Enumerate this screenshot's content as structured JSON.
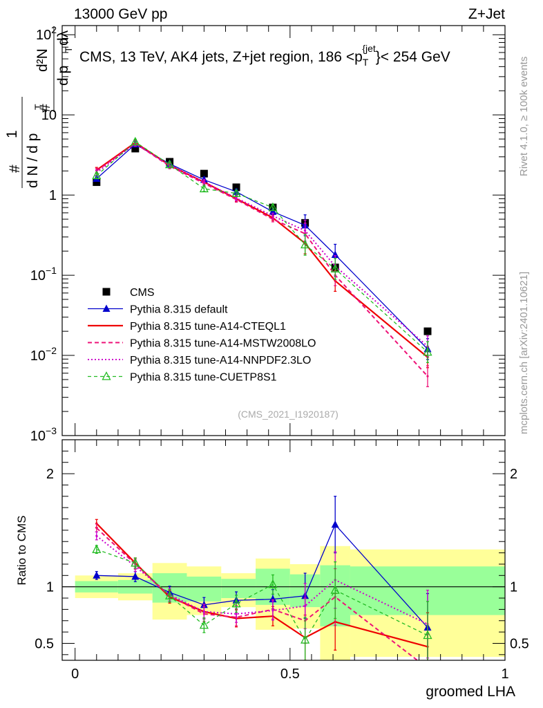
{
  "header": {
    "left": "13000 GeV pp",
    "right": "Z+Jet"
  },
  "side": {
    "rivet": "Rivet 4.1.0, ≥ 100k events",
    "mcplots": "mcplots.cern.ch [arXiv:2401.10621]"
  },
  "colors": {
    "cms": "#000000",
    "default": "#0000cc",
    "cteql1": "#ee0000",
    "mstw": "#ee1177",
    "nnpdf": "#cc00cc",
    "cuetp8s1": "#22bb22",
    "band_yellow": "#ffff99",
    "band_green": "#99ff99"
  },
  "chart_data": [
    {
      "type": "line",
      "panel": "main",
      "title": "CMS, 13 TeV, AK4 jets, Z+jet region, 186 <p_T^{jet}< 254 GeV",
      "title_parts": {
        "pre": "CMS, 13 TeV, AK4 jets, Z+jet region, 186 <p",
        "sub": "T",
        "sup": "{jet",
        "post": "}< 254 GeV"
      },
      "ylabel": "1/(dN/dpT) d²N/(dpT dλ)",
      "ylabel_parts": {
        "one": "1",
        "dn": "d N / d p",
        "T": "T",
        "num": "d²N",
        "den": "d p",
        "lam": "dλ",
        "hash": "#"
      },
      "yscale": "log",
      "ylim": [
        0.001,
        130
      ],
      "xlim": [
        -0.03,
        1.0
      ],
      "yticks": [
        {
          "v": 100,
          "base": "10",
          "exp": "2"
        },
        {
          "v": 10,
          "base": "10",
          "exp": ""
        },
        {
          "v": 1,
          "base": "1",
          "exp": ""
        },
        {
          "v": 0.1,
          "base": "10",
          "exp": "−1"
        },
        {
          "v": 0.01,
          "base": "10",
          "exp": "−2"
        },
        {
          "v": 0.001,
          "base": "10",
          "exp": "−3"
        }
      ],
      "watermark": "(CMS_2021_I1920187)",
      "x": [
        0.05,
        0.14,
        0.22,
        0.3,
        0.375,
        0.46,
        0.535,
        0.605,
        0.82
      ],
      "series": [
        {
          "key": "cms",
          "name": "CMS",
          "style": "marker",
          "values": [
            1.45,
            3.8,
            2.6,
            1.85,
            1.25,
            0.7,
            0.45,
            0.125,
            0.02
          ]
        },
        {
          "key": "default",
          "name": "Pythia 8.315 default",
          "style": "solid-triangle",
          "values": [
            1.6,
            4.3,
            2.45,
            1.55,
            1.1,
            0.62,
            0.42,
            0.18,
            0.012
          ]
        },
        {
          "key": "cteql1",
          "name": "Pythia 8.315 tune-A14-CTEQL1",
          "style": "solid-thick",
          "values": [
            2.05,
            4.5,
            2.35,
            1.45,
            0.9,
            0.52,
            0.25,
            0.085,
            0.0095
          ]
        },
        {
          "key": "mstw",
          "name": "Pythia 8.315 tune-A14-MSTW2008LO",
          "style": "dashed",
          "values": [
            2.0,
            4.4,
            2.3,
            1.4,
            0.88,
            0.5,
            0.33,
            0.1,
            0.0055
          ]
        },
        {
          "key": "nnpdf",
          "name": "Pythia 8.315 tune-A14-NNPDF2.3LO",
          "style": "dotted",
          "values": [
            1.9,
            4.4,
            2.35,
            1.45,
            0.92,
            0.55,
            0.36,
            0.13,
            0.013
          ]
        },
        {
          "key": "cuetp8s1",
          "name": "Pythia 8.315 tune-CUETP8S1",
          "style": "dashed-open-triangle",
          "values": [
            1.75,
            4.6,
            2.4,
            1.2,
            1.05,
            0.7,
            0.24,
            0.12,
            0.011
          ]
        }
      ]
    },
    {
      "type": "line",
      "panel": "ratio",
      "ylabel": "Ratio to CMS",
      "xlabel": "groomed LHA",
      "ylim": [
        0.35,
        2.3
      ],
      "xlim": [
        -0.03,
        1.0
      ],
      "yticks": [
        0.5,
        1,
        2
      ],
      "ytick_labels": [
        "0.5",
        "1",
        "2"
      ],
      "xticks": [
        0,
        0.5,
        1
      ],
      "xtick_labels": [
        "0",
        "0.5",
        "1"
      ],
      "bins": [
        [
          0.0,
          0.1
        ],
        [
          0.1,
          0.18
        ],
        [
          0.18,
          0.26
        ],
        [
          0.26,
          0.34
        ],
        [
          0.34,
          0.42
        ],
        [
          0.42,
          0.5
        ],
        [
          0.5,
          0.57
        ],
        [
          0.57,
          0.64
        ],
        [
          0.64,
          1.0
        ]
      ],
      "band_yellow": [
        [
          0.9,
          1.1
        ],
        [
          0.88,
          1.12
        ],
        [
          0.71,
          1.21
        ],
        [
          0.75,
          1.18
        ],
        [
          0.82,
          1.12
        ],
        [
          0.62,
          1.25
        ],
        [
          0.63,
          1.2
        ],
        [
          0.35,
          1.36
        ],
        [
          0.38,
          1.33
        ]
      ],
      "band_green": [
        [
          0.95,
          1.05
        ],
        [
          0.94,
          1.06
        ],
        [
          0.86,
          1.12
        ],
        [
          0.87,
          1.09
        ],
        [
          0.9,
          1.07
        ],
        [
          0.84,
          1.16
        ],
        [
          0.82,
          1.11
        ],
        [
          0.65,
          1.19
        ],
        [
          0.75,
          1.18
        ]
      ],
      "x": [
        0.05,
        0.14,
        0.22,
        0.3,
        0.375,
        0.46,
        0.535,
        0.605,
        0.82
      ],
      "series": [
        {
          "key": "default",
          "name": "Pythia 8.315 default",
          "values": [
            1.1,
            1.09,
            0.95,
            0.84,
            0.88,
            0.89,
            0.92,
            1.55,
            0.64
          ]
        },
        {
          "key": "cteql1",
          "name": "Pythia 8.315 tune-A14-CTEQL1",
          "values": [
            1.56,
            1.21,
            0.91,
            0.78,
            0.72,
            0.74,
            0.55,
            0.69,
            0.47
          ]
        },
        {
          "key": "mstw",
          "name": "Pythia 8.315 tune-A14-MSTW2008LO",
          "values": [
            1.52,
            1.2,
            0.92,
            0.76,
            0.73,
            0.8,
            0.7,
            0.91,
            0.28
          ]
        },
        {
          "key": "nnpdf",
          "name": "Pythia 8.315 tune-A14-NNPDF2.3LO",
          "values": [
            1.45,
            1.18,
            0.93,
            0.78,
            0.76,
            0.79,
            0.83,
            1.06,
            0.67
          ]
        },
        {
          "key": "cuetp8s1",
          "name": "Pythia 8.315 tune-CUETP8S1",
          "values": [
            1.33,
            1.21,
            0.92,
            0.66,
            0.85,
            1.02,
            0.53,
            0.97,
            0.57
          ]
        }
      ]
    }
  ]
}
